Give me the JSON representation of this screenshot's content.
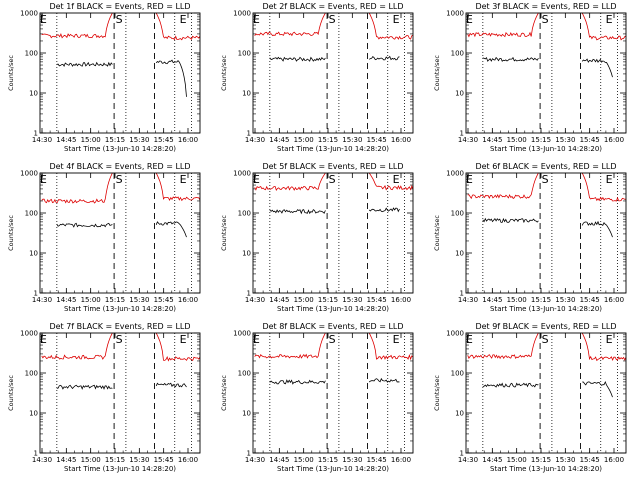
{
  "page": {
    "colors": {
      "events": "#000000",
      "lld": "#dd0000",
      "axes": "#000000",
      "background": "#ffffff"
    }
  },
  "chart_data": [
    {
      "type": "line",
      "title": "Det 1f BLACK = Events, RED = LLD",
      "ylabel": "Counts/sec",
      "xlabel": "Start Time (13-Jun-10 14:28:20)",
      "x_ticks": [
        "14:30",
        "14:45",
        "15:00",
        "15:15",
        "15:30",
        "15:45",
        "16:00"
      ],
      "y_ticks": [
        "1",
        "10",
        "100",
        "1000"
      ],
      "y_scale": "log",
      "xlim_min": [
        0,
        95
      ],
      "ylim": [
        1,
        1000
      ],
      "markers": [
        {
          "label": "E",
          "x": 2
        },
        {
          "label": "S",
          "x": 47
        },
        {
          "label": "E",
          "x": 85
        }
      ],
      "dotted_lines": [
        10,
        51,
        80,
        90
      ],
      "dashed_lines": [
        44,
        68
      ],
      "series": [
        {
          "name": "BLACK = Events",
          "color": "#000000",
          "segments": [
            {
              "x": [
                10,
                43
              ],
              "base": 52,
              "start": null,
              "end": null
            },
            {
              "x": [
                69,
                87
              ],
              "base": 60,
              "start": null,
              "end": 8
            }
          ]
        },
        {
          "name": "RED = LLD",
          "color": "#dd0000",
          "segments": [
            {
              "x": [
                1,
                43
              ],
              "base": 270,
              "start": null,
              "end": 1000
            },
            {
              "x": [
                69,
                95
              ],
              "base": 240,
              "start": 1000,
              "end": null
            }
          ]
        }
      ]
    },
    {
      "type": "line",
      "title": "Det 2f BLACK = Events, RED = LLD",
      "ylabel": "Counts/sec",
      "xlabel": "Start Time (13-Jun-10 14:28:20)",
      "x_ticks": [
        "14:30",
        "14:45",
        "15:00",
        "15:15",
        "15:30",
        "15:45",
        "16:00"
      ],
      "y_ticks": [
        "1",
        "10",
        "100",
        "1000"
      ],
      "y_scale": "log",
      "xlim_min": [
        0,
        95
      ],
      "ylim": [
        1,
        1000
      ],
      "markers": [
        {
          "label": "E",
          "x": 2
        },
        {
          "label": "S",
          "x": 47
        },
        {
          "label": "E",
          "x": 85
        }
      ],
      "dotted_lines": [
        10,
        51,
        80,
        90
      ],
      "dashed_lines": [
        44,
        68
      ],
      "series": [
        {
          "name": "BLACK = Events",
          "color": "#000000",
          "segments": [
            {
              "x": [
                10,
                43
              ],
              "base": 70,
              "start": null,
              "end": null
            },
            {
              "x": [
                69,
                87
              ],
              "base": 75,
              "start": null,
              "end": null
            }
          ]
        },
        {
          "name": "RED = LLD",
          "color": "#dd0000",
          "segments": [
            {
              "x": [
                1,
                43
              ],
              "base": 300,
              "start": null,
              "end": 1000
            },
            {
              "x": [
                69,
                95
              ],
              "base": 250,
              "start": 1000,
              "end": null
            }
          ]
        }
      ]
    },
    {
      "type": "line",
      "title": "Det 3f BLACK = Events, RED = LLD",
      "ylabel": "Counts/sec",
      "xlabel": "Start Time (13-Jun-10 14:28:20)",
      "x_ticks": [
        "14:30",
        "14:45",
        "15:00",
        "15:15",
        "15:30",
        "15:45",
        "16:00"
      ],
      "y_ticks": [
        "1",
        "10",
        "100",
        "1000"
      ],
      "y_scale": "log",
      "xlim_min": [
        0,
        95
      ],
      "ylim": [
        1,
        1000
      ],
      "markers": [
        {
          "label": "E",
          "x": 2
        },
        {
          "label": "S",
          "x": 47
        },
        {
          "label": "E",
          "x": 85
        }
      ],
      "dotted_lines": [
        10,
        51,
        80,
        90
      ],
      "dashed_lines": [
        44,
        68
      ],
      "series": [
        {
          "name": "BLACK = Events",
          "color": "#000000",
          "segments": [
            {
              "x": [
                10,
                43
              ],
              "base": 70,
              "start": null,
              "end": null
            },
            {
              "x": [
                69,
                87
              ],
              "base": 65,
              "start": null,
              "end": 25
            }
          ]
        },
        {
          "name": "RED = LLD",
          "color": "#dd0000",
          "segments": [
            {
              "x": [
                1,
                43
              ],
              "base": 290,
              "start": null,
              "end": 1000
            },
            {
              "x": [
                69,
                95
              ],
              "base": 240,
              "start": 1000,
              "end": null
            }
          ]
        }
      ]
    },
    {
      "type": "line",
      "title": "Det 4f BLACK = Events, RED = LLD",
      "ylabel": "Counts/sec",
      "xlabel": "Start Time (13-Jun-10 14:28:20)",
      "x_ticks": [
        "14:30",
        "14:45",
        "15:00",
        "15:15",
        "15:30",
        "15:45",
        "16:00"
      ],
      "y_ticks": [
        "1",
        "10",
        "100",
        "1000"
      ],
      "y_scale": "log",
      "xlim_min": [
        0,
        95
      ],
      "ylim": [
        1,
        1000
      ],
      "markers": [
        {
          "label": "E",
          "x": 2
        },
        {
          "label": "S",
          "x": 47
        },
        {
          "label": "E",
          "x": 85
        }
      ],
      "dotted_lines": [
        10,
        51,
        80,
        90
      ],
      "dashed_lines": [
        44,
        68
      ],
      "series": [
        {
          "name": "BLACK = Events",
          "color": "#000000",
          "segments": [
            {
              "x": [
                10,
                43
              ],
              "base": 50,
              "start": null,
              "end": null
            },
            {
              "x": [
                69,
                87
              ],
              "base": 55,
              "start": null,
              "end": 25
            }
          ]
        },
        {
          "name": "RED = LLD",
          "color": "#dd0000",
          "segments": [
            {
              "x": [
                1,
                43
              ],
              "base": 200,
              "start": null,
              "end": 1000
            },
            {
              "x": [
                69,
                95
              ],
              "base": 230,
              "start": 1000,
              "end": null
            }
          ]
        }
      ]
    },
    {
      "type": "line",
      "title": "Det 5f BLACK = Events, RED = LLD",
      "ylabel": "Counts/sec",
      "xlabel": "Start Time (13-Jun-10 14:28:20)",
      "x_ticks": [
        "14:30",
        "14:45",
        "15:00",
        "15:15",
        "15:30",
        "15:45",
        "16:00"
      ],
      "y_ticks": [
        "1",
        "10",
        "100",
        "1000"
      ],
      "y_scale": "log",
      "xlim_min": [
        0,
        95
      ],
      "ylim": [
        1,
        1000
      ],
      "markers": [
        {
          "label": "E",
          "x": 2
        },
        {
          "label": "S",
          "x": 47
        },
        {
          "label": "E",
          "x": 85
        }
      ],
      "dotted_lines": [
        10,
        51,
        80,
        90
      ],
      "dashed_lines": [
        44,
        68
      ],
      "series": [
        {
          "name": "BLACK = Events",
          "color": "#000000",
          "segments": [
            {
              "x": [
                10,
                43
              ],
              "base": 110,
              "start": null,
              "end": null
            },
            {
              "x": [
                69,
                87
              ],
              "base": 120,
              "start": null,
              "end": null
            }
          ]
        },
        {
          "name": "RED = LLD",
          "color": "#dd0000",
          "segments": [
            {
              "x": [
                1,
                43
              ],
              "base": 420,
              "start": null,
              "end": 1000
            },
            {
              "x": [
                69,
                95
              ],
              "base": 430,
              "start": 1000,
              "end": null
            }
          ]
        }
      ]
    },
    {
      "type": "line",
      "title": "Det 6f BLACK = Events, RED = LLD",
      "ylabel": "Counts/sec",
      "xlabel": "Start Time (13-Jun-10 14:28:20)",
      "x_ticks": [
        "14:30",
        "14:45",
        "15:00",
        "15:15",
        "15:30",
        "15:45",
        "16:00"
      ],
      "y_ticks": [
        "1",
        "10",
        "100",
        "1000"
      ],
      "y_scale": "log",
      "xlim_min": [
        0,
        95
      ],
      "ylim": [
        1,
        1000
      ],
      "markers": [
        {
          "label": "E",
          "x": 2
        },
        {
          "label": "S",
          "x": 47
        },
        {
          "label": "E",
          "x": 85
        }
      ],
      "dotted_lines": [
        10,
        51,
        80,
        90
      ],
      "dashed_lines": [
        44,
        68
      ],
      "series": [
        {
          "name": "BLACK = Events",
          "color": "#000000",
          "segments": [
            {
              "x": [
                10,
                43
              ],
              "base": 65,
              "start": null,
              "end": null
            },
            {
              "x": [
                69,
                87
              ],
              "base": 55,
              "start": null,
              "end": 25
            }
          ]
        },
        {
          "name": "RED = LLD",
          "color": "#dd0000",
          "segments": [
            {
              "x": [
                1,
                43
              ],
              "base": 260,
              "start": null,
              "end": 1000
            },
            {
              "x": [
                69,
                95
              ],
              "base": 220,
              "start": 1000,
              "end": null
            }
          ]
        }
      ]
    },
    {
      "type": "line",
      "title": "Det 7f BLACK = Events, RED = LLD",
      "ylabel": "Counts/sec",
      "xlabel": "Start Time (13-Jun-10 14:28:20)",
      "x_ticks": [
        "14:30",
        "14:45",
        "15:00",
        "15:15",
        "15:30",
        "15:45",
        "16:00"
      ],
      "y_ticks": [
        "1",
        "10",
        "100",
        "1000"
      ],
      "y_scale": "log",
      "xlim_min": [
        0,
        95
      ],
      "ylim": [
        1,
        1000
      ],
      "markers": [
        {
          "label": "E",
          "x": 2
        },
        {
          "label": "S",
          "x": 47
        },
        {
          "label": "E",
          "x": 85
        }
      ],
      "dotted_lines": [
        10,
        51,
        80,
        90
      ],
      "dashed_lines": [
        44,
        68
      ],
      "series": [
        {
          "name": "BLACK = Events",
          "color": "#000000",
          "segments": [
            {
              "x": [
                10,
                43
              ],
              "base": 45,
              "start": null,
              "end": null
            },
            {
              "x": [
                69,
                87
              ],
              "base": 50,
              "start": null,
              "end": null
            }
          ]
        },
        {
          "name": "RED = LLD",
          "color": "#dd0000",
          "segments": [
            {
              "x": [
                1,
                43
              ],
              "base": 250,
              "start": null,
              "end": 1000
            },
            {
              "x": [
                69,
                95
              ],
              "base": 230,
              "start": 1000,
              "end": null
            }
          ]
        }
      ]
    },
    {
      "type": "line",
      "title": "Det 8f BLACK = Events, RED = LLD",
      "ylabel": "Counts/sec",
      "xlabel": "Start Time (13-Jun-10 14:28:20)",
      "x_ticks": [
        "14:30",
        "14:45",
        "15:00",
        "15:15",
        "15:30",
        "15:45",
        "16:00"
      ],
      "y_ticks": [
        "1",
        "10",
        "100",
        "1000"
      ],
      "y_scale": "log",
      "xlim_min": [
        0,
        95
      ],
      "ylim": [
        1,
        1000
      ],
      "markers": [
        {
          "label": "E",
          "x": 2
        },
        {
          "label": "S",
          "x": 47
        },
        {
          "label": "E",
          "x": 85
        }
      ],
      "dotted_lines": [
        10,
        51,
        80,
        90
      ],
      "dashed_lines": [
        44,
        68
      ],
      "series": [
        {
          "name": "BLACK = Events",
          "color": "#000000",
          "segments": [
            {
              "x": [
                10,
                43
              ],
              "base": 60,
              "start": null,
              "end": null
            },
            {
              "x": [
                69,
                87
              ],
              "base": 65,
              "start": null,
              "end": null
            }
          ]
        },
        {
          "name": "RED = LLD",
          "color": "#dd0000",
          "segments": [
            {
              "x": [
                1,
                43
              ],
              "base": 260,
              "start": null,
              "end": 1000
            },
            {
              "x": [
                69,
                95
              ],
              "base": 250,
              "start": 1000,
              "end": null
            }
          ]
        }
      ]
    },
    {
      "type": "line",
      "title": "Det 9f BLACK = Events, RED = LLD",
      "ylabel": "Counts/sec",
      "xlabel": "Start Time (13-Jun-10 14:28:20)",
      "x_ticks": [
        "14:30",
        "14:45",
        "15:00",
        "15:15",
        "15:30",
        "15:45",
        "16:00"
      ],
      "y_ticks": [
        "1",
        "10",
        "100",
        "1000"
      ],
      "y_scale": "log",
      "xlim_min": [
        0,
        95
      ],
      "ylim": [
        1,
        1000
      ],
      "markers": [
        {
          "label": "E",
          "x": 2
        },
        {
          "label": "S",
          "x": 47
        },
        {
          "label": "E",
          "x": 85
        }
      ],
      "dotted_lines": [
        10,
        51,
        80,
        90
      ],
      "dashed_lines": [
        44,
        68
      ],
      "series": [
        {
          "name": "BLACK = Events",
          "color": "#000000",
          "segments": [
            {
              "x": [
                10,
                43
              ],
              "base": 50,
              "start": null,
              "end": null
            },
            {
              "x": [
                69,
                87
              ],
              "base": 55,
              "start": null,
              "end": 25
            }
          ]
        },
        {
          "name": "RED = LLD",
          "color": "#dd0000",
          "segments": [
            {
              "x": [
                1,
                43
              ],
              "base": 260,
              "start": null,
              "end": 1000
            },
            {
              "x": [
                69,
                95
              ],
              "base": 230,
              "start": 1000,
              "end": null
            }
          ]
        }
      ]
    }
  ]
}
